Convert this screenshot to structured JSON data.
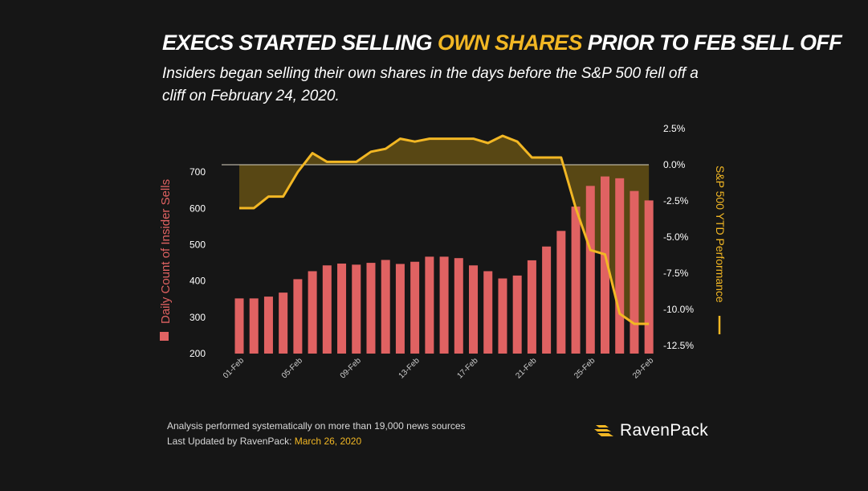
{
  "title": {
    "part1": "EXECS STARTED SELLING ",
    "highlight": "OWN SHARES",
    "part2": " PRIOR TO FEB SELL OFF"
  },
  "subtitle": "Insiders began selling their own shares in the days before the S&P 500 fell off a cliff on February 24, 2020.",
  "footer": {
    "line1": "Analysis performed systematically on more than 19,000 news sources",
    "line2_prefix": "Last Updated by RavenPack: ",
    "line2_date": "March 26, 2020"
  },
  "logo": {
    "text": "RavenPack",
    "icon": "ravenpack-logo-icon"
  },
  "colors": {
    "bars": "#e06262",
    "line": "#f2b724",
    "area": "#5c4a14",
    "background": "#161616"
  },
  "chart_data": {
    "type": "bar",
    "categories": [
      "01-Feb",
      "02-Feb",
      "03-Feb",
      "04-Feb",
      "05-Feb",
      "06-Feb",
      "07-Feb",
      "08-Feb",
      "09-Feb",
      "10-Feb",
      "11-Feb",
      "12-Feb",
      "13-Feb",
      "14-Feb",
      "15-Feb",
      "16-Feb",
      "17-Feb",
      "18-Feb",
      "19-Feb",
      "20-Feb",
      "21-Feb",
      "22-Feb",
      "23-Feb",
      "24-Feb",
      "25-Feb",
      "26-Feb",
      "27-Feb",
      "28-Feb",
      "29-Feb"
    ],
    "tick_labels": [
      "01-Feb",
      "05-Feb",
      "09-Feb",
      "13-Feb",
      "17-Feb",
      "21-Feb",
      "25-Feb",
      "29-Feb"
    ],
    "series": [
      {
        "name": "Daily Count of Insider Sells",
        "axis": "left",
        "kind": "bar",
        "values": [
          352,
          352,
          357,
          368,
          405,
          427,
          443,
          448,
          445,
          450,
          458,
          447,
          453,
          467,
          467,
          463,
          443,
          427,
          407,
          415,
          457,
          495,
          538,
          605,
          662,
          688,
          683,
          648,
          622
        ]
      },
      {
        "name": "S&P 500 YTD Performance",
        "axis": "right",
        "kind": "line-area",
        "values": [
          -3.0,
          -3.0,
          -2.2,
          -2.2,
          -0.5,
          0.8,
          0.2,
          0.2,
          0.2,
          0.9,
          1.1,
          1.8,
          1.6,
          1.8,
          1.8,
          1.8,
          1.8,
          1.5,
          2.0,
          1.6,
          0.5,
          0.5,
          0.5,
          -3.0,
          -5.9,
          -6.2,
          -10.3,
          -11.0,
          -11.0
        ]
      }
    ],
    "ylabel_left": "Daily Count of Insider Sells",
    "ylabel_right": "S&P 500 YTD Performance",
    "ylim_left": [
      200,
      800
    ],
    "yticks_left": [
      200,
      300,
      400,
      500,
      600,
      700
    ],
    "ylim_right": [
      -12.5,
      2.5
    ],
    "yticks_right": [
      "2.5%",
      "0.0%",
      "-2.5%",
      "-5.0%",
      "-7.5%",
      "-10.0%",
      "-12.5%"
    ],
    "grid": false
  }
}
